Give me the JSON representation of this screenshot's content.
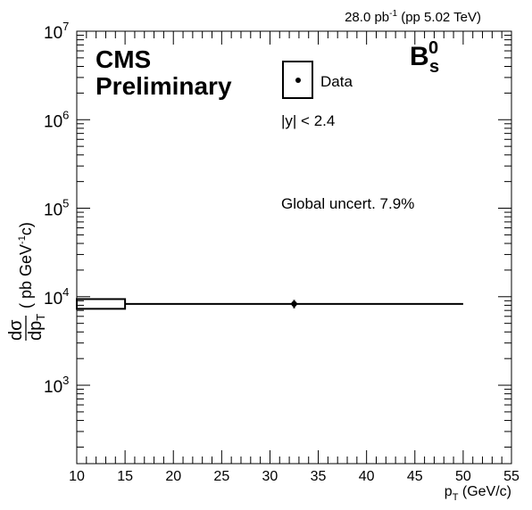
{
  "chart_data": {
    "type": "scatter",
    "lumi": {
      "base": "28.0 pb",
      "sup": "-1",
      "rest": " (pp 5.02 TeV)"
    },
    "experiment": {
      "line1": "CMS",
      "line2": "Preliminary"
    },
    "particle": {
      "base": "B",
      "sup": "0",
      "sub": "s"
    },
    "legend": {
      "entry": "Data",
      "position": "top-center"
    },
    "rapidity_cut": "|y| < 2.4",
    "global_uncertainty": "Global uncert. 7.9%",
    "xlabel": {
      "base": "p",
      "sub": "T",
      "rest": " (GeV/c)"
    },
    "ylabel": {
      "num": "dσ",
      "den_base": "dp",
      "den_sub": "T",
      "units_pre": "( pb GeV",
      "units_sup": "-1",
      "units_post": "c)"
    },
    "xlim": [
      10,
      55
    ],
    "ylim": [
      130,
      10000000
    ],
    "yscale": "log",
    "x_ticks": [
      10,
      15,
      20,
      25,
      30,
      35,
      40,
      45,
      50,
      55
    ],
    "y_ticks": [
      {
        "value": 1000,
        "base": "10",
        "exp": "3"
      },
      {
        "value": 10000,
        "base": "10",
        "exp": "4"
      },
      {
        "value": 100000,
        "base": "10",
        "exp": "5"
      },
      {
        "value": 1000000,
        "base": "10",
        "exp": "6"
      },
      {
        "value": 10000000,
        "base": "10",
        "exp": "7"
      }
    ],
    "points": [
      {
        "x": 32.5,
        "y": 8300,
        "x_low": 15,
        "x_high": 50,
        "y_err": 900
      }
    ],
    "syst_box": {
      "x_low": 10,
      "x_high": 15,
      "y_low": 7300,
      "y_high": 9400
    }
  }
}
